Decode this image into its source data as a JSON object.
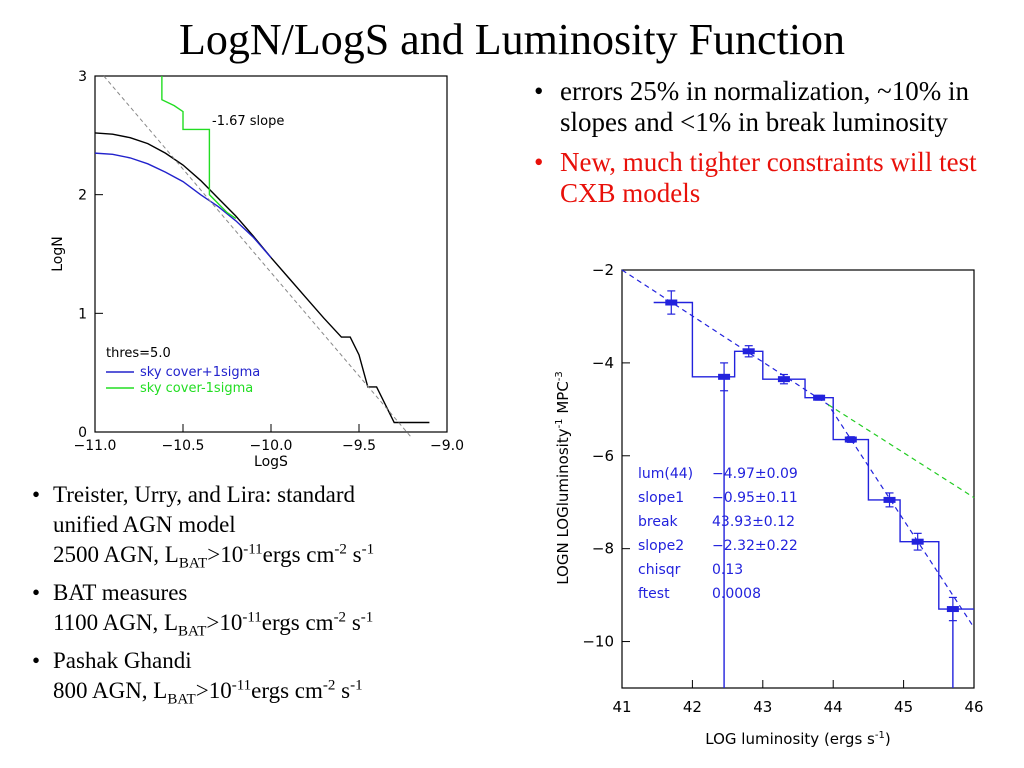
{
  "slide": {
    "title": "LogN/LogS and Luminosity Function",
    "right_bullets": [
      {
        "text": "errors 25% in normalization, ~10% in slopes and <1% in break luminosity",
        "color": "#000000"
      },
      {
        "text": "New, much tighter constraints will test CXB models",
        "color": "#e8100a"
      }
    ],
    "left_bullets": [
      {
        "line1": "Treister, Urry, and Lira: standard",
        "line2": "unified AGN model",
        "count": "2500 AGN, L",
        "sub": "BAT",
        "gt": ">10",
        "exp": "-11",
        "unit": "ergs cm",
        "unit_exp": "-2",
        "s": " s",
        "s_exp": "-1"
      },
      {
        "line1": "BAT measures",
        "count": "1100 AGN, L",
        "sub": "BAT",
        "gt": ">10",
        "exp": "-11",
        "unit": "ergs cm",
        "unit_exp": "-2",
        "s": " s",
        "s_exp": "-1"
      },
      {
        "line1": "Pashak Ghandi",
        "count": "800 AGN, L",
        "sub": "BAT",
        "gt": ">10",
        "exp": "-11",
        "unit": "ergs cm",
        "unit_exp": "-2",
        "s": " s",
        "s_exp": "-1"
      }
    ],
    "bullet_char": "•"
  },
  "chart_data": [
    {
      "type": "line",
      "xlabel": "LogS",
      "ylabel": "LogN",
      "xlim": [
        -11.0,
        -9.0
      ],
      "ylim": [
        0,
        3
      ],
      "xticks": [
        "-11.0",
        "-10.5",
        "-10.0",
        "-9.5",
        "-9.0"
      ],
      "yticks": [
        "0",
        "1",
        "2",
        "3"
      ],
      "annotation": "-1.67 slope",
      "legend_title": "thres=5.0",
      "series": [
        {
          "name": "",
          "color": "#000000",
          "x": [
            -11.0,
            -10.9,
            -10.8,
            -10.7,
            -10.6,
            -10.5,
            -10.4,
            -10.3,
            -10.2,
            -10.1,
            -10.0,
            -9.9,
            -9.8,
            -9.7,
            -9.6,
            -9.55,
            -9.5,
            -9.45,
            -9.4,
            -9.3,
            -9.2,
            -9.1
          ],
          "y": [
            2.52,
            2.51,
            2.48,
            2.43,
            2.35,
            2.25,
            2.12,
            1.97,
            1.82,
            1.65,
            1.47,
            1.3,
            1.13,
            0.96,
            0.8,
            0.8,
            0.65,
            0.38,
            0.38,
            0.08,
            0.08,
            0.08
          ]
        },
        {
          "name": "sky cover+1sigma",
          "color": "#2222cc",
          "x": [
            -11.0,
            -10.9,
            -10.8,
            -10.7,
            -10.6,
            -10.5,
            -10.4,
            -10.3,
            -10.2,
            -10.1,
            -10.0
          ],
          "y": [
            2.35,
            2.34,
            2.31,
            2.26,
            2.19,
            2.11,
            2.0,
            1.9,
            1.78,
            1.64,
            1.47
          ]
        },
        {
          "name": "sky cover-1sigma",
          "color": "#22dd22",
          "x": [
            -10.62,
            -10.62,
            -10.55,
            -10.5,
            -10.5,
            -10.35,
            -10.35,
            -10.25,
            -10.2
          ],
          "y": [
            3.0,
            2.8,
            2.75,
            2.7,
            2.55,
            2.55,
            2.0,
            1.85,
            1.8
          ]
        },
        {
          "name": "",
          "color": "#888888",
          "x": [
            -10.95,
            -9.2
          ],
          "y": [
            3.0,
            -0.05
          ]
        }
      ]
    },
    {
      "type": "line",
      "xlabel": "LOG luminosity (ergs s",
      "xlabel_sup": "-1",
      "xlabel_end": ")",
      "ylabel": "LOGN LOGluminosity",
      "ylabel_sup1": "-1",
      "ylabel_mid": " MPC",
      "ylabel_sup2": "-3",
      "xlim": [
        41,
        46
      ],
      "ylim": [
        -11,
        -2
      ],
      "xticks": [
        "41",
        "42",
        "43",
        "44",
        "45",
        "46"
      ],
      "yticks": [
        "-2",
        "-4",
        "-6",
        "-8",
        "-10"
      ],
      "fit_params": [
        {
          "name": "lum(44)",
          "value": "-4.97±0.09"
        },
        {
          "name": "slope1",
          "value": "-0.95±0.11"
        },
        {
          "name": "break",
          "value": "43.93±0.12"
        },
        {
          "name": "slope2",
          "value": "-2.32±0.22"
        },
        {
          "name": "chisqr",
          "value": "0.13"
        },
        {
          "name": "ftest",
          "value": "0.0008"
        }
      ],
      "points": [
        {
          "x": 41.7,
          "y": -2.7,
          "err": 0.25
        },
        {
          "x": 42.45,
          "y": -4.3,
          "err": 0.3
        },
        {
          "x": 42.8,
          "y": -3.75,
          "err": 0.12
        },
        {
          "x": 43.3,
          "y": -4.35,
          "err": 0.1
        },
        {
          "x": 43.8,
          "y": -4.75,
          "err": 0.05
        },
        {
          "x": 44.25,
          "y": -5.65,
          "err": 0.06
        },
        {
          "x": 44.8,
          "y": -6.95,
          "err": 0.15
        },
        {
          "x": 45.2,
          "y": -7.85,
          "err": 0.18
        },
        {
          "x": 45.7,
          "y": -9.3,
          "err": 0.25
        }
      ],
      "step_bins": [
        [
          41.45,
          42.0,
          -2.7
        ],
        [
          42.0,
          42.6,
          -4.3
        ],
        [
          42.6,
          43.0,
          -3.75
        ],
        [
          43.0,
          43.6,
          -4.35
        ],
        [
          43.6,
          44.0,
          -4.75
        ],
        [
          44.0,
          44.5,
          -5.65
        ],
        [
          44.5,
          44.95,
          -6.95
        ],
        [
          44.95,
          45.5,
          -7.85
        ],
        [
          45.5,
          46.0,
          -9.3
        ]
      ],
      "step_color": "#2222dd",
      "lines": [
        {
          "color": "#2222dd",
          "x": [
            41.0,
            43.93,
            46.0
          ],
          "y": [
            -2.0,
            -4.9,
            -9.7
          ]
        },
        {
          "color": "#22cc22",
          "x": [
            43.93,
            46.0
          ],
          "y": [
            -4.9,
            -6.9
          ]
        }
      ]
    }
  ]
}
